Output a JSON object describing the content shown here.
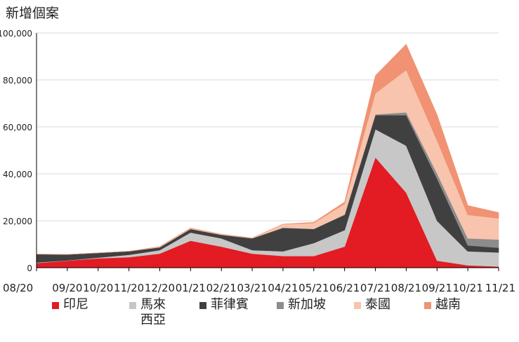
{
  "chart_data": {
    "type": "area",
    "title": "新增個案",
    "xlabel": "",
    "ylabel": "",
    "ylim": [
      0,
      100000
    ],
    "yticks": [
      0,
      20000,
      40000,
      60000,
      80000,
      100000
    ],
    "ytick_labels": [
      "0",
      "20,000",
      "40,000",
      "60,000",
      "80,000",
      "100,000"
    ],
    "xtick_labels": [
      "08/20",
      "09/20",
      "10/20",
      "11/20",
      "12/20",
      "01/21",
      "02/21",
      "03/21",
      "04/21",
      "05/21",
      "06/21",
      "07/21",
      "08/21",
      "09/21",
      "10/21",
      "11/21"
    ],
    "grid": true,
    "legend_position": "bottom",
    "stacked": true,
    "x": [
      "08/20",
      "09/20",
      "10/20",
      "11/20",
      "12/20",
      "01/21",
      "02/21",
      "03/21",
      "04/21",
      "05/21",
      "06/21",
      "07/21",
      "08/21",
      "09/21",
      "10/21",
      "11/21"
    ],
    "series": [
      {
        "name": "印尼",
        "color": "#e31b23",
        "values": [
          2000,
          3000,
          4000,
          4500,
          6000,
          11500,
          9000,
          6000,
          5000,
          5000,
          9000,
          47000,
          32000,
          3000,
          1000,
          500
        ]
      },
      {
        "name": "馬來西亞",
        "color": "#c7c7c7",
        "values": [
          200,
          100,
          300,
          1000,
          1500,
          3500,
          3500,
          1500,
          2000,
          5500,
          7000,
          12000,
          20000,
          17000,
          6000,
          6000
        ]
      },
      {
        "name": "菲律賓",
        "color": "#404040",
        "values": [
          3500,
          2500,
          2000,
          1500,
          1200,
          1500,
          1500,
          5000,
          10000,
          6000,
          6500,
          6000,
          13000,
          18000,
          2500,
          2000
        ]
      },
      {
        "name": "新加坡",
        "color": "#8c8c8c",
        "values": [
          100,
          50,
          20,
          10,
          20,
          30,
          20,
          30,
          40,
          40,
          200,
          300,
          1200,
          2200,
          3000,
          3500
        ]
      },
      {
        "name": "泰國",
        "color": "#f8c4ad",
        "values": [
          10,
          10,
          10,
          10,
          300,
          400,
          300,
          150,
          1500,
          2500,
          4500,
          9000,
          18000,
          14000,
          10000,
          9000
        ]
      },
      {
        "name": "越南",
        "color": "#f09273",
        "values": [
          20,
          10,
          5,
          5,
          5,
          10,
          10,
          10,
          20,
          300,
          800,
          7500,
          11000,
          11000,
          4000,
          2500
        ]
      }
    ]
  }
}
